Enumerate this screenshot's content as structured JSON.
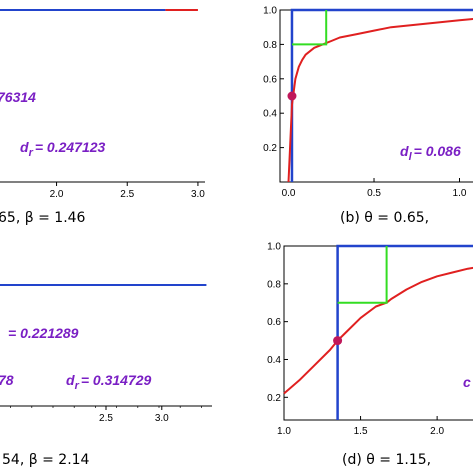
{
  "colors": {
    "curve": "#e02020",
    "vline": "#2244cc",
    "box": "#2244cc",
    "steps": "#33dd22",
    "dot": "#c0185a",
    "annot": "#7a1fc4"
  },
  "chart_data": [
    {
      "panel": "a",
      "type": "line",
      "xlim": [
        1.6,
        3.05
      ],
      "xticks": [
        "2.0",
        "2.5",
        "3.0"
      ],
      "xtick_values": [
        2.0,
        2.5,
        3.0
      ],
      "series": [
        {
          "x": [
            1.6,
            2.77
          ],
          "y": [
            1,
            1
          ],
          "color": "#2244cc"
        },
        {
          "x": [
            2.77,
            3.0
          ],
          "y": [
            1,
            1
          ],
          "color": "#e02020"
        }
      ],
      "annotations": [
        {
          "text": "76314"
        },
        {
          "main": "d",
          "sub": "r",
          "text": "= 0.247123"
        }
      ],
      "caption": "65, β = 1.46"
    },
    {
      "panel": "b",
      "type": "line",
      "xlim": [
        -0.05,
        1.12
      ],
      "ylim": [
        0,
        1.0
      ],
      "xticks": [
        "0.0",
        "0.5",
        "1.0"
      ],
      "xtick_values": [
        0.0,
        0.5,
        1.0
      ],
      "yticks": [
        "0.2",
        "0.4",
        "0.6",
        "0.8",
        "1.0"
      ],
      "ytick_values": [
        0.2,
        0.4,
        0.6,
        0.8,
        1.0
      ],
      "curve_x": [
        0.0,
        0.02,
        0.04,
        0.06,
        0.08,
        0.1,
        0.15,
        0.2,
        0.25,
        0.3,
        0.4,
        0.5,
        0.6,
        0.7,
        0.8,
        0.9,
        1.0,
        1.1
      ],
      "curve_y": [
        0.0,
        0.45,
        0.6,
        0.67,
        0.71,
        0.74,
        0.78,
        0.8,
        0.82,
        0.84,
        0.86,
        0.88,
        0.9,
        0.91,
        0.92,
        0.93,
        0.94,
        0.95
      ],
      "vline_x": 0.02,
      "box": {
        "x0": 0.02,
        "x1": 1.12,
        "y_top": 1.0
      },
      "steps": [
        [
          0.02,
          0.8
        ],
        [
          0.22,
          0.8
        ],
        [
          0.22,
          1.0
        ]
      ],
      "dot": [
        0.02,
        0.5
      ],
      "annotations": [
        {
          "main": "d",
          "sub": "l",
          "text": "= 0.086"
        }
      ],
      "caption": "(b)  θ = 0.65,"
    },
    {
      "panel": "c",
      "type": "line",
      "xlim": [
        1.55,
        3.45
      ],
      "xticks": [
        "2.5",
        "3.0"
      ],
      "xtick_values": [
        2.5,
        3.0
      ],
      "series": [
        {
          "x": [
            1.55,
            3.4
          ],
          "y": [
            1,
            1
          ],
          "color": "#2244cc"
        }
      ],
      "annotations": [
        {
          "text": "= 0.221289"
        },
        {
          "text": "78"
        },
        {
          "main": "d",
          "sub": "r",
          "text": "= 0.314729"
        }
      ],
      "caption": "54, β = 2.14"
    },
    {
      "panel": "d",
      "type": "line",
      "xlim": [
        1.0,
        2.28
      ],
      "ylim": [
        0.08,
        1.0
      ],
      "xticks": [
        "1.0",
        "1.5",
        "2.0"
      ],
      "xtick_values": [
        1.0,
        1.5,
        2.0
      ],
      "yticks": [
        "0.2",
        "0.4",
        "0.6",
        "0.8",
        "1.0"
      ],
      "ytick_values": [
        0.2,
        0.4,
        0.6,
        0.8,
        1.0
      ],
      "curve_x": [
        1.0,
        1.1,
        1.2,
        1.3,
        1.35,
        1.4,
        1.5,
        1.6,
        1.67,
        1.7,
        1.8,
        1.9,
        2.0,
        2.1,
        2.2,
        2.28
      ],
      "curve_y": [
        0.22,
        0.29,
        0.37,
        0.45,
        0.5,
        0.54,
        0.62,
        0.68,
        0.7,
        0.72,
        0.77,
        0.81,
        0.84,
        0.86,
        0.88,
        0.89
      ],
      "vline_x": 1.35,
      "box": {
        "x0": 1.35,
        "x1": 2.28,
        "y_top": 1.0
      },
      "steps": [
        [
          1.35,
          0.7
        ],
        [
          1.67,
          0.7
        ],
        [
          1.67,
          1.0
        ]
      ],
      "dot": [
        1.35,
        0.5
      ],
      "annotations": [
        {
          "text": "c"
        }
      ],
      "caption": "(d)  θ = 1.15,"
    }
  ]
}
